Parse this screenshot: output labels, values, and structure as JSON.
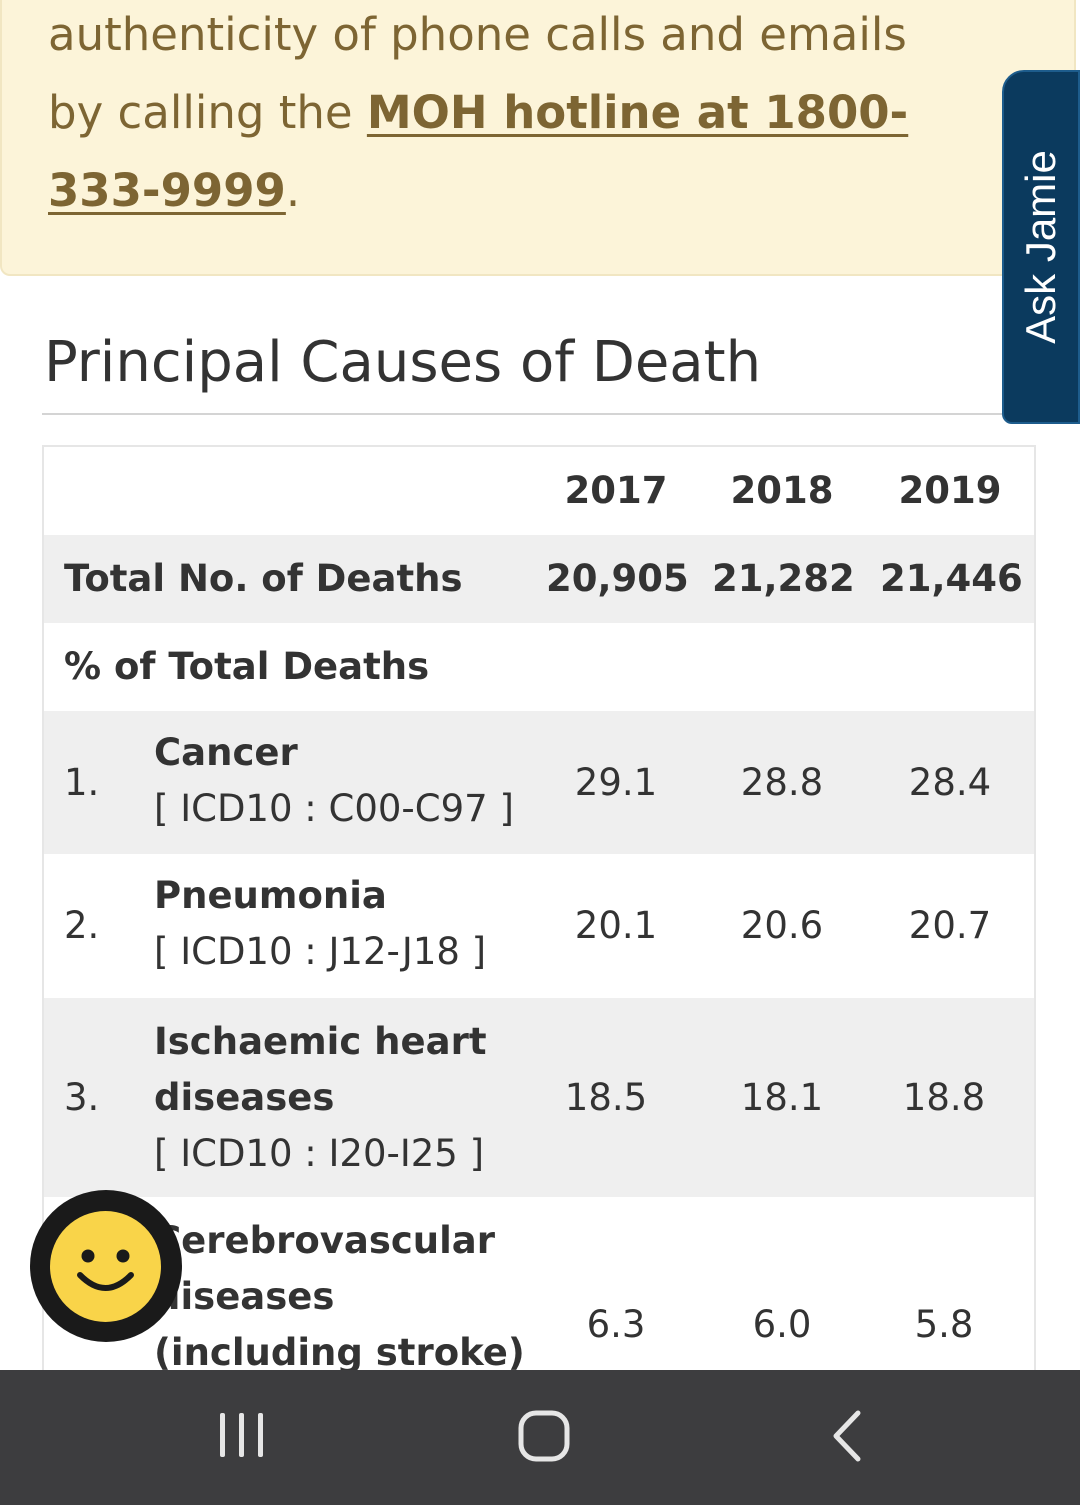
{
  "notice": {
    "text_before": "authenticity of phone calls and emails by calling the ",
    "hotline_link": "MOH hotline at 1800-333-9999",
    "text_after": "."
  },
  "ask_jamie": {
    "label": "Ask Jamie"
  },
  "section": {
    "title": "Principal Causes of Death"
  },
  "table": {
    "years": [
      "2017",
      "2018",
      "2019"
    ],
    "total_row": {
      "label": "Total No. of Deaths",
      "values": [
        "20,905",
        "21,282",
        "21,446"
      ]
    },
    "percent_header": "% of Total Deaths",
    "causes": [
      {
        "rank": "1.",
        "name": "Cancer",
        "icd": "[ ICD10 : C00-C97 ]",
        "values": [
          "29.1",
          "28.8",
          "28.4"
        ]
      },
      {
        "rank": "2.",
        "name": "Pneumonia",
        "icd": "[ ICD10 : J12-J18 ]",
        "values": [
          "20.1",
          "20.6",
          "20.7"
        ]
      },
      {
        "rank": "3.",
        "name_line1": "Ischaemic heart",
        "name_line2": "diseases",
        "icd": "[ ICD10 : I20-I25 ]",
        "values": [
          "18.5",
          "18.1",
          "18.8"
        ]
      },
      {
        "name_line1": "Cerebrovascular",
        "name_line2": "diseases",
        "name_line3": "(including stroke)",
        "values": [
          "6.3",
          "6.0",
          "5.8"
        ]
      }
    ]
  },
  "colors": {
    "notice_bg": "#fcf4d9",
    "notice_text": "#7d6533",
    "ask_jamie_bg": "#0b3a5e",
    "nav_bar_bg": "#3d3d3f",
    "smiley_yellow": "#f9d449"
  },
  "icons": {
    "feedback": "smiley-icon",
    "nav_recents": "recents-icon",
    "nav_home": "home-icon",
    "nav_back": "back-icon"
  }
}
